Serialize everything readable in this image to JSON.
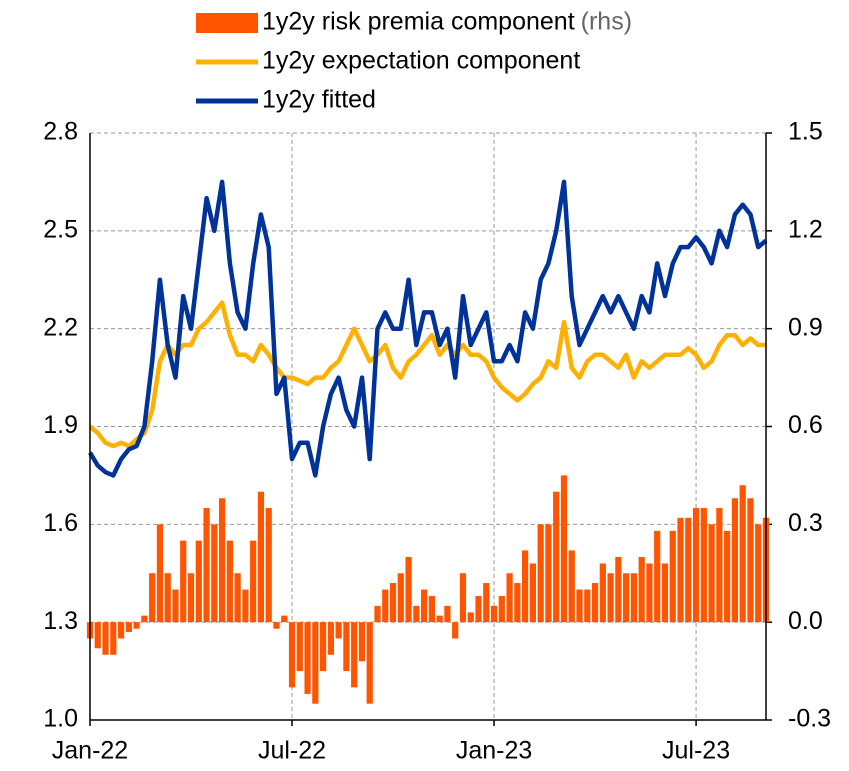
{
  "chart_data": {
    "type": "bar_line",
    "categories": [
      "Jan-22",
      null,
      null,
      null,
      null,
      null,
      null,
      null,
      null,
      null,
      null,
      null,
      null,
      null,
      null,
      null,
      null,
      null,
      null,
      null,
      null,
      null,
      null,
      null,
      null,
      null,
      "Jul-22",
      null,
      null,
      null,
      null,
      null,
      null,
      null,
      null,
      null,
      null,
      null,
      null,
      null,
      null,
      null,
      null,
      null,
      null,
      null,
      null,
      null,
      null,
      null,
      null,
      null,
      "Jan-23",
      null,
      null,
      null,
      null,
      null,
      null,
      null,
      null,
      null,
      null,
      null,
      null,
      null,
      null,
      null,
      null,
      null,
      null,
      null,
      null,
      null,
      null,
      null,
      null,
      null,
      "Jul-23",
      null,
      null,
      null,
      null,
      null,
      null,
      null,
      null,
      null
    ],
    "series": [
      {
        "name": "1y2y risk premia component",
        "axis_note": "(rhs)",
        "kind": "bar",
        "axis": "y2",
        "color": "#ff5500",
        "values": [
          -0.05,
          -0.08,
          -0.1,
          -0.1,
          -0.05,
          -0.03,
          -0.02,
          0.02,
          0.15,
          0.3,
          0.15,
          0.1,
          0.25,
          0.15,
          0.25,
          0.35,
          0.3,
          0.38,
          0.25,
          0.15,
          0.1,
          0.25,
          0.4,
          0.35,
          -0.02,
          0.02,
          -0.2,
          -0.15,
          -0.22,
          -0.25,
          -0.15,
          -0.1,
          -0.05,
          -0.15,
          -0.2,
          -0.12,
          -0.25,
          0.05,
          0.1,
          0.12,
          0.15,
          0.2,
          0.05,
          0.1,
          0.08,
          0.02,
          0.05,
          -0.05,
          0.15,
          0.03,
          0.08,
          0.12,
          0.05,
          0.08,
          0.15,
          0.12,
          0.22,
          0.18,
          0.3,
          0.3,
          0.4,
          0.45,
          0.22,
          0.1,
          0.1,
          0.12,
          0.18,
          0.15,
          0.2,
          0.15,
          0.15,
          0.2,
          0.18,
          0.28,
          0.18,
          0.28,
          0.32,
          0.32,
          0.35,
          0.35,
          0.3,
          0.35,
          0.28,
          0.38,
          0.42,
          0.38,
          0.3,
          0.32
        ]
      },
      {
        "name": "1y2y expectation component",
        "kind": "line",
        "color": "#ffb000",
        "values": [
          1.9,
          1.88,
          1.85,
          1.84,
          1.85,
          1.84,
          1.86,
          1.88,
          1.95,
          2.1,
          2.15,
          2.12,
          2.15,
          2.15,
          2.2,
          2.22,
          2.25,
          2.28,
          2.18,
          2.12,
          2.12,
          2.1,
          2.15,
          2.12,
          2.08,
          2.05,
          2.05,
          2.04,
          2.03,
          2.05,
          2.05,
          2.08,
          2.1,
          2.15,
          2.2,
          2.15,
          2.1,
          2.12,
          2.15,
          2.08,
          2.05,
          2.1,
          2.12,
          2.15,
          2.18,
          2.12,
          2.15,
          2.12,
          2.15,
          2.12,
          2.12,
          2.1,
          2.05,
          2.02,
          2.0,
          1.98,
          2.0,
          2.03,
          2.05,
          2.1,
          2.08,
          2.22,
          2.08,
          2.05,
          2.1,
          2.12,
          2.12,
          2.1,
          2.08,
          2.12,
          2.05,
          2.1,
          2.08,
          2.1,
          2.12,
          2.12,
          2.12,
          2.14,
          2.12,
          2.08,
          2.1,
          2.15,
          2.18,
          2.18,
          2.15,
          2.17,
          2.15,
          2.15
        ]
      },
      {
        "name": "1y2y fitted",
        "kind": "line",
        "color": "#003399",
        "values": [
          1.82,
          1.78,
          1.76,
          1.75,
          1.8,
          1.83,
          1.84,
          1.9,
          2.1,
          2.35,
          2.15,
          2.05,
          2.3,
          2.2,
          2.4,
          2.6,
          2.5,
          2.65,
          2.4,
          2.25,
          2.2,
          2.4,
          2.55,
          2.45,
          2.0,
          2.05,
          1.8,
          1.85,
          1.85,
          1.75,
          1.9,
          2.0,
          2.05,
          1.95,
          1.9,
          2.05,
          1.8,
          2.2,
          2.25,
          2.2,
          2.2,
          2.35,
          2.15,
          2.25,
          2.25,
          2.15,
          2.2,
          2.05,
          2.3,
          2.15,
          2.2,
          2.25,
          2.1,
          2.1,
          2.15,
          2.1,
          2.25,
          2.2,
          2.35,
          2.4,
          2.5,
          2.65,
          2.3,
          2.15,
          2.2,
          2.25,
          2.3,
          2.25,
          2.3,
          2.25,
          2.2,
          2.3,
          2.25,
          2.4,
          2.3,
          2.4,
          2.45,
          2.45,
          2.48,
          2.45,
          2.4,
          2.5,
          2.45,
          2.55,
          2.58,
          2.55,
          2.45,
          2.47
        ]
      }
    ],
    "ylim": [
      1.0,
      2.8
    ],
    "yticks": [
      {
        "value": 1.0,
        "label": "1.0"
      },
      1.3,
      1.6,
      1.9,
      2.2,
      2.5,
      2.8
    ],
    "y2lim": [
      -0.3,
      1.5
    ],
    "y2ticks": [
      -0.3,
      {
        "value": 0.0,
        "label": "0.0"
      },
      0.3,
      0.6,
      0.9,
      1.2,
      1.5
    ],
    "grid": true,
    "legend": "top"
  }
}
